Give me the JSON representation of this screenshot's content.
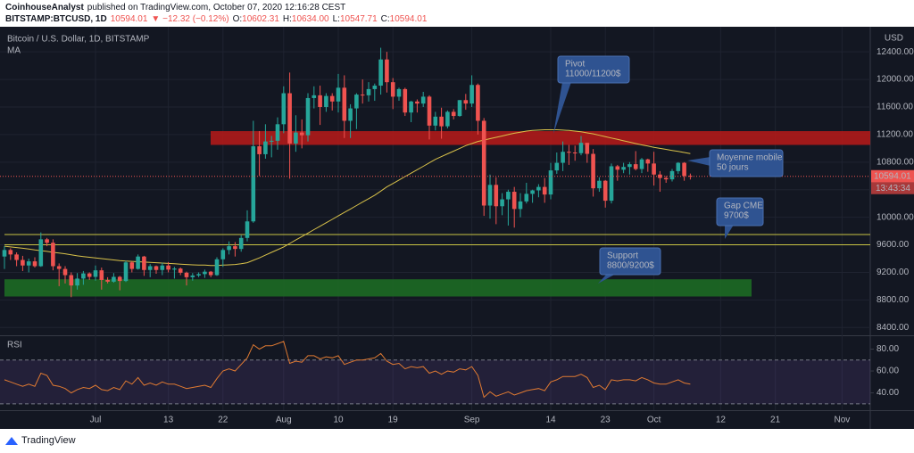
{
  "header": {
    "author": "CoinhouseAnalyst",
    "published": "published on TradingView.com, October 07, 2020 12:16:28 CEST",
    "symbol": "BITSTAMP:BTCUSD, 1D",
    "last": "10594.01",
    "change": "▼ −12.32 (−0.12%)",
    "quote": [
      {
        "label": "O:",
        "value": "10602.31"
      },
      {
        "label": "H:",
        "value": "10634.00"
      },
      {
        "label": "L:",
        "value": "10547.71"
      },
      {
        "label": "C:",
        "value": "10594.01"
      }
    ]
  },
  "footer": {
    "brand": "TradingView"
  },
  "chart_data": [
    {
      "type": "candlestick",
      "title": "Bitcoin / U.S. Dollar, 1D, BITSTAMP",
      "currency": "USD",
      "up_color": "#26a69a",
      "down_color": "#ef5350",
      "grid": true,
      "categories": [
        null,
        null,
        null,
        null,
        null,
        null,
        null,
        null,
        null,
        null,
        null,
        null,
        null,
        null,
        null,
        "Jul",
        null,
        null,
        null,
        null,
        null,
        null,
        null,
        null,
        null,
        null,
        null,
        "13",
        null,
        null,
        null,
        null,
        null,
        null,
        null,
        null,
        "22",
        null,
        null,
        null,
        null,
        null,
        null,
        null,
        null,
        null,
        "Aug",
        null,
        null,
        null,
        null,
        null,
        null,
        null,
        null,
        "10",
        null,
        null,
        null,
        null,
        null,
        null,
        null,
        null,
        "19",
        null,
        null,
        null,
        null,
        null,
        null,
        null,
        null,
        null,
        null,
        null,
        null,
        "Sep",
        null,
        null,
        null,
        null,
        null,
        null,
        null,
        null,
        null,
        null,
        null,
        null,
        "14",
        null,
        null,
        null,
        null,
        null,
        null,
        null,
        null,
        "23",
        null,
        null,
        null,
        null,
        null,
        null,
        null,
        "Oct",
        null,
        null,
        null,
        null,
        null,
        null,
        null,
        null,
        null,
        null,
        "12",
        null,
        null,
        null,
        null,
        null,
        null,
        null,
        null,
        "21",
        null,
        null,
        null,
        null,
        null,
        null,
        null,
        null,
        null,
        null,
        "Nov",
        null,
        null,
        null,
        null
      ],
      "open": [
        9430,
        9525,
        9460,
        9380,
        9300,
        9360,
        9290,
        9680,
        9630,
        9290,
        9250,
        9160,
        9010,
        9110,
        9185,
        9135,
        9230,
        9090,
        9065,
        9135,
        9075,
        9345,
        9250,
        9430,
        9235,
        9290,
        9235,
        9300,
        9240,
        9255,
        9195,
        9130,
        9155,
        9175,
        9210,
        9160,
        9390,
        9525,
        9580,
        9540,
        9700,
        9940,
        11030,
        10915,
        11100,
        11110,
        11350,
        11800,
        11070,
        11230,
        11190,
        11730,
        11770,
        11600,
        11760,
        11680,
        11880,
        11400,
        11580,
        11780,
        11770,
        11860,
        11910,
        12290,
        11960,
        11750,
        11860,
        11520,
        11680,
        11650,
        11750,
        11330,
        11460,
        11320,
        11530,
        11470,
        11700,
        11650,
        11920,
        11400,
        10170,
        10470,
        10160,
        10260,
        10370,
        10120,
        10230,
        10340,
        10390,
        10440,
        10330,
        10680,
        10790,
        10950,
        10940,
        10930,
        11080,
        10920,
        10420,
        10530,
        10240,
        10740,
        10690,
        10730,
        10770,
        10700,
        10840,
        10780,
        10620,
        10570,
        10550,
        10670,
        10790,
        10602.31,
        null,
        null,
        null,
        null,
        null,
        null,
        null,
        null,
        null,
        null,
        null,
        null,
        null,
        null,
        null,
        null,
        null,
        null,
        null,
        null,
        null,
        null,
        null,
        null,
        null,
        null,
        null,
        null,
        null
      ],
      "high": [
        9580,
        9550,
        9490,
        9440,
        9400,
        9420,
        9780,
        9700,
        9680,
        9330,
        9290,
        9200,
        9190,
        9220,
        9200,
        9300,
        9270,
        9130,
        9190,
        9150,
        9370,
        9360,
        9460,
        9440,
        9320,
        9300,
        9340,
        9350,
        9280,
        9270,
        9210,
        9190,
        9200,
        9240,
        9220,
        9420,
        9550,
        9650,
        9640,
        9740,
        10100,
        11400,
        11250,
        11350,
        11180,
        11450,
        11900,
        12100,
        11480,
        11420,
        11800,
        11900,
        11910,
        11800,
        11800,
        12080,
        12060,
        11640,
        11800,
        12000,
        11960,
        11940,
        12460,
        12400,
        12020,
        11880,
        11880,
        11690,
        11710,
        11820,
        11770,
        11530,
        11590,
        11550,
        11570,
        11700,
        11790,
        12060,
        11940,
        11440,
        10620,
        10580,
        10350,
        10400,
        10440,
        10350,
        10500,
        10400,
        10480,
        10570,
        10790,
        10940,
        11100,
        11050,
        11040,
        11180,
        11080,
        10990,
        10580,
        10540,
        10780,
        10760,
        10790,
        10800,
        10960,
        10860,
        10850,
        10950,
        10670,
        10600,
        10700,
        10800,
        10800,
        10634,
        null,
        null,
        null,
        null,
        null,
        null,
        null,
        null,
        null,
        null,
        null,
        null,
        null,
        null,
        null,
        null,
        null,
        null,
        null,
        null,
        null,
        null,
        null,
        null,
        null,
        null,
        null,
        null,
        null
      ],
      "low": [
        9250,
        9380,
        9290,
        9220,
        9200,
        9270,
        9280,
        9580,
        9230,
        9000,
        9040,
        8840,
        8950,
        9020,
        9090,
        9080,
        8950,
        9040,
        9050,
        8940,
        9060,
        9200,
        9240,
        9150,
        9130,
        9180,
        9160,
        9200,
        9110,
        9160,
        9010,
        9080,
        9130,
        9120,
        9130,
        9150,
        9280,
        9460,
        9430,
        9500,
        9650,
        9920,
        10600,
        10850,
        10870,
        10980,
        11220,
        10560,
        10950,
        11000,
        11100,
        11580,
        11340,
        11530,
        11550,
        11520,
        11150,
        11150,
        11280,
        11650,
        11680,
        11690,
        11780,
        11810,
        11570,
        11690,
        11470,
        11380,
        11520,
        11600,
        11130,
        11260,
        11140,
        11290,
        11420,
        11460,
        11560,
        11600,
        11200,
        10020,
        9980,
        9900,
        10030,
        9880,
        9850,
        10000,
        10200,
        10210,
        10290,
        10210,
        10260,
        10630,
        10670,
        10760,
        10820,
        10900,
        10790,
        10300,
        10370,
        10140,
        10200,
        10530,
        10640,
        10620,
        10680,
        10640,
        10660,
        10460,
        10370,
        10500,
        10520,
        10630,
        10530,
        10547.71,
        null,
        null,
        null,
        null,
        null,
        null,
        null,
        null,
        null,
        null,
        null,
        null,
        null,
        null,
        null,
        null,
        null,
        null,
        null,
        null,
        null,
        null,
        null,
        null,
        null,
        null,
        null,
        null,
        null
      ],
      "close": [
        9525,
        9460,
        9380,
        9300,
        9360,
        9290,
        9680,
        9630,
        9290,
        9250,
        9160,
        9010,
        9110,
        9185,
        9135,
        9230,
        9090,
        9065,
        9135,
        9075,
        9345,
        9250,
        9430,
        9235,
        9290,
        9235,
        9300,
        9240,
        9255,
        9195,
        9130,
        9155,
        9175,
        9210,
        9160,
        9390,
        9525,
        9580,
        9540,
        9700,
        9940,
        11030,
        10915,
        11100,
        11110,
        11350,
        11800,
        11070,
        11230,
        11190,
        11730,
        11770,
        11600,
        11760,
        11680,
        11880,
        11400,
        11580,
        11780,
        11770,
        11860,
        11910,
        12290,
        11960,
        11750,
        11860,
        11520,
        11680,
        11650,
        11750,
        11330,
        11460,
        11320,
        11530,
        11470,
        11700,
        11650,
        11920,
        11400,
        10170,
        10470,
        10160,
        10260,
        10370,
        10120,
        10230,
        10340,
        10390,
        10440,
        10330,
        10680,
        10790,
        10950,
        10940,
        10930,
        11080,
        10920,
        10420,
        10530,
        10240,
        10740,
        10690,
        10730,
        10770,
        10700,
        10840,
        10780,
        10620,
        10570,
        10550,
        10670,
        10790,
        10600,
        10594.01,
        null,
        null,
        null,
        null,
        null,
        null,
        null,
        null,
        null,
        null,
        null,
        null,
        null,
        null,
        null,
        null,
        null,
        null,
        null,
        null,
        null,
        null,
        null,
        null,
        null,
        null,
        null,
        null,
        null
      ],
      "ma": {
        "name": "MA",
        "color": "#d9c24a",
        "values": [
          9580,
          9570,
          9560,
          9550,
          9540,
          9525,
          9515,
          9505,
          9490,
          9480,
          9470,
          9455,
          9440,
          9430,
          9420,
          9410,
          9400,
          9390,
          9380,
          9370,
          9365,
          9360,
          9355,
          9350,
          9345,
          9340,
          9335,
          9330,
          9325,
          9320,
          9315,
          9310,
          9305,
          9305,
          9300,
          9300,
          9305,
          9310,
          9315,
          9325,
          9340,
          9375,
          9410,
          9450,
          9490,
          9530,
          9570,
          9620,
          9670,
          9720,
          9770,
          9820,
          9870,
          9920,
          9970,
          10020,
          10070,
          10120,
          10170,
          10220,
          10270,
          10320,
          10380,
          10440,
          10490,
          10540,
          10590,
          10640,
          10690,
          10740,
          10790,
          10840,
          10880,
          10920,
          10960,
          11000,
          11040,
          11070,
          11100,
          11120,
          11140,
          11160,
          11180,
          11200,
          11220,
          11235,
          11250,
          11260,
          11265,
          11270,
          11270,
          11270,
          11265,
          11260,
          11250,
          11240,
          11225,
          11210,
          11190,
          11170,
          11150,
          11130,
          11110,
          11090,
          11070,
          11050,
          11035,
          11015,
          11000,
          10985,
          10970,
          10955,
          10940,
          10925,
          null,
          null,
          null,
          null,
          null,
          null,
          null,
          null,
          null,
          null,
          null,
          null,
          null,
          null,
          null,
          null,
          null,
          null,
          null,
          null,
          null,
          null,
          null,
          null,
          null,
          null,
          null,
          null,
          null
        ]
      },
      "ylim": [
        8300,
        12700
      ],
      "yticks": [
        {
          "value": 8400,
          "label": "8400.00"
        },
        {
          "value": 8800,
          "label": "8800.00"
        },
        {
          "value": 9200,
          "label": "9200.00"
        },
        {
          "value": 9600,
          "label": "9600.00"
        },
        {
          "value": 10000,
          "label": "10000.00"
        },
        {
          "value": 10400,
          "label": "10400.00"
        },
        {
          "value": 10800,
          "label": "10800.00"
        },
        {
          "value": 11200,
          "label": "11200.00"
        },
        {
          "value": 11600,
          "label": "11600.00"
        },
        {
          "value": 12000,
          "label": "12000.00"
        },
        {
          "value": 12400,
          "label": "12400.00"
        }
      ],
      "countdown": "13:43:34",
      "zones": [
        {
          "low": 11050,
          "high": 11250,
          "color": "#b01a1a"
        },
        {
          "low": 8850,
          "high": 9100,
          "color": "#1d6a24"
        }
      ],
      "levels": [
        9750,
        9600
      ],
      "level_color": "#c9c444",
      "annotations": [
        {
          "lines": [
            "Pivot",
            "11000/11200$"
          ]
        },
        {
          "lines": [
            "Moyenne mobile",
            "50 jours"
          ]
        },
        {
          "lines": [
            "Gap CME",
            "9700$"
          ]
        },
        {
          "lines": [
            "Support",
            "8800/9200$"
          ]
        }
      ]
    },
    {
      "type": "line",
      "title": "RSI",
      "color": "#e07a32",
      "band_color": "#7e57c2",
      "values": [
        52,
        50,
        48,
        46,
        48,
        46,
        58,
        56,
        47,
        46,
        44,
        40,
        43,
        45,
        44,
        47,
        43,
        42,
        45,
        43,
        51,
        48,
        54,
        47,
        49,
        47,
        50,
        48,
        48,
        46,
        44,
        45,
        46,
        47,
        45,
        53,
        60,
        62,
        60,
        66,
        72,
        84,
        80,
        83,
        83,
        85,
        87,
        67,
        69,
        68,
        74,
        74,
        71,
        73,
        72,
        74,
        66,
        68,
        70,
        70,
        71,
        72,
        76,
        69,
        66,
        67,
        62,
        64,
        63,
        64,
        58,
        60,
        57,
        60,
        59,
        62,
        61,
        64,
        56,
        36,
        41,
        37,
        39,
        41,
        38,
        40,
        42,
        43,
        44,
        42,
        50,
        52,
        55,
        55,
        55,
        57,
        54,
        45,
        47,
        43,
        52,
        51,
        52,
        52,
        51,
        54,
        52,
        49,
        48,
        48,
        50,
        52,
        49,
        48,
        null,
        null,
        null,
        null,
        null,
        null,
        null,
        null,
        null,
        null,
        null,
        null,
        null,
        null,
        null,
        null,
        null,
        null,
        null,
        null,
        null,
        null,
        null,
        null,
        null,
        null,
        null,
        null,
        null
      ],
      "ylim": [
        25,
        91
      ],
      "yticks": [
        {
          "value": 40,
          "label": "40.00"
        },
        {
          "value": 60,
          "label": "60.00"
        },
        {
          "value": 80,
          "label": "80.00"
        }
      ],
      "bands": [
        30,
        70
      ]
    }
  ]
}
